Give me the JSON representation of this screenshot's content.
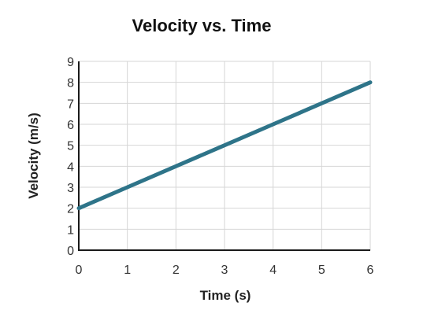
{
  "chart_data": {
    "type": "line",
    "title": "Velocity vs. Time",
    "xlabel": "Time (s)",
    "ylabel": "Velocity (m/s)",
    "xlim": [
      0,
      6
    ],
    "ylim": [
      0,
      9
    ],
    "xticks": [
      0,
      1,
      2,
      3,
      4,
      5,
      6
    ],
    "yticks": [
      0,
      1,
      2,
      3,
      4,
      5,
      6,
      7,
      8,
      9
    ],
    "grid": true,
    "series": [
      {
        "x": [
          0,
          1,
          2,
          3,
          4,
          5,
          6
        ],
        "y": [
          2,
          3,
          4,
          5,
          6,
          7,
          8
        ],
        "color": "#2e7489"
      }
    ]
  }
}
